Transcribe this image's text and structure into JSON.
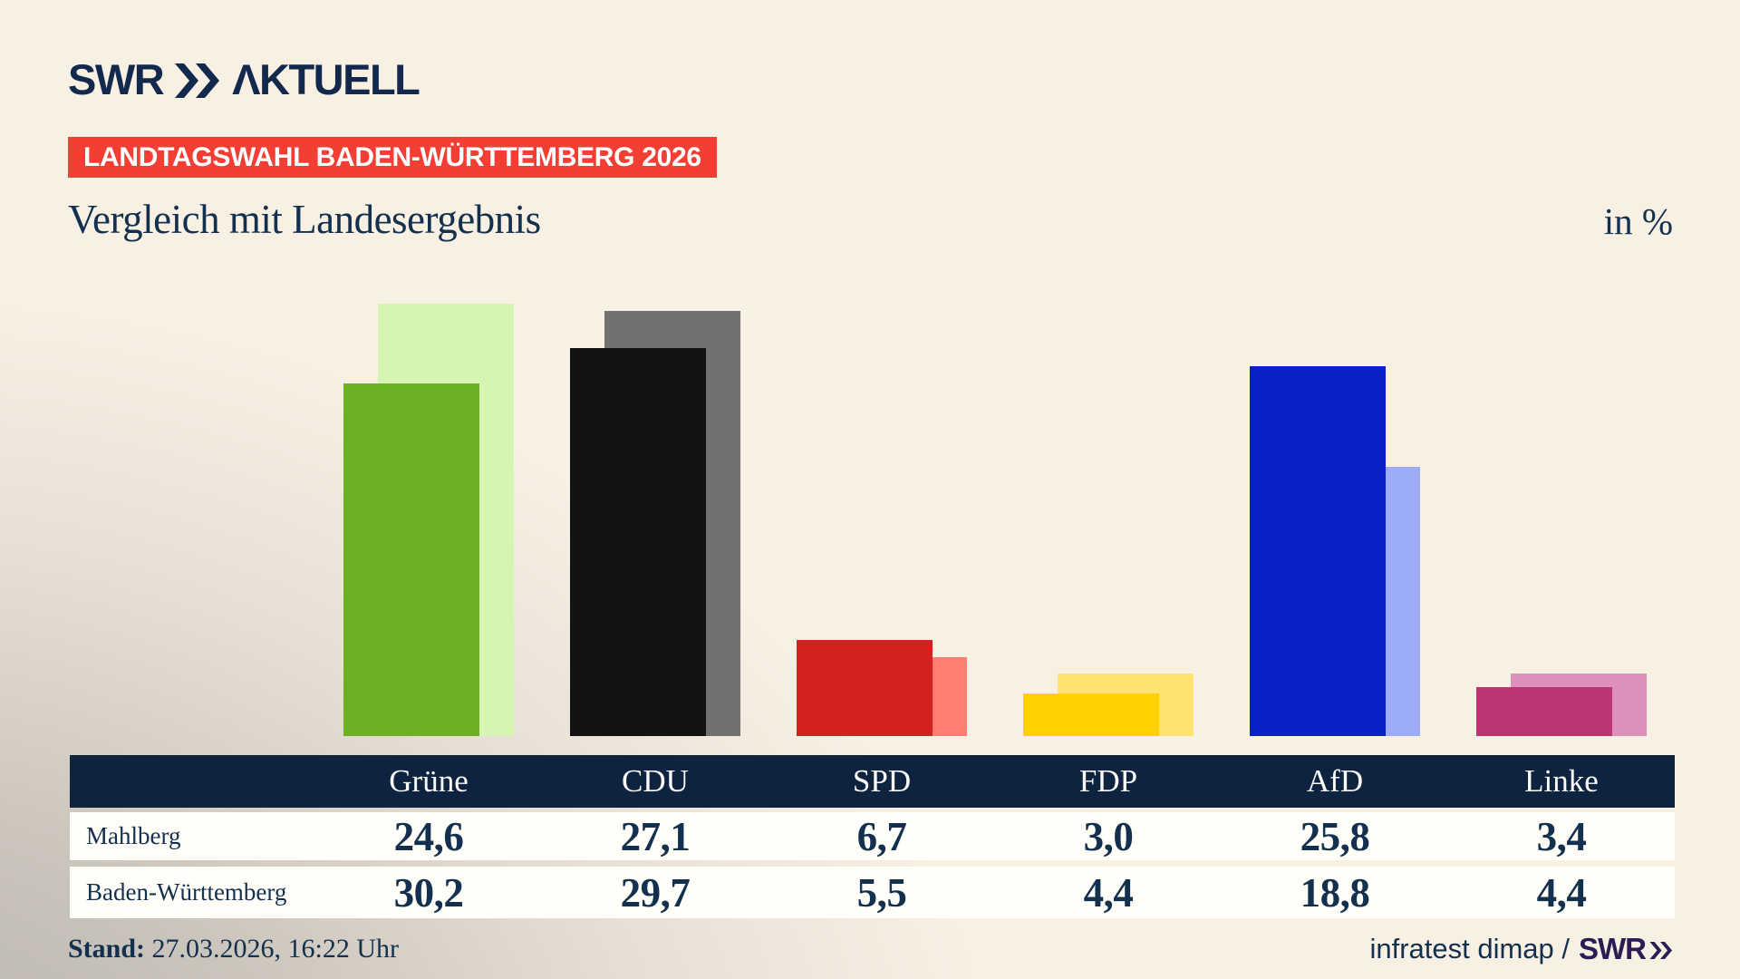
{
  "header": {
    "logo_brand": "SWR",
    "logo_suffix": "ΛKTUELL",
    "badge": "LANDTAGSWAHL BADEN-WÜRTTEMBERG 2026",
    "title": "Vergleich mit Landesergebnis",
    "unit": "in %"
  },
  "chart_data": {
    "type": "bar",
    "categories": [
      "Grüne",
      "CDU",
      "SPD",
      "FDP",
      "AfD",
      "Linke"
    ],
    "series": [
      {
        "name": "Mahlberg",
        "role": "front",
        "values": [
          24.6,
          27.1,
          6.7,
          3.0,
          25.8,
          3.4
        ]
      },
      {
        "name": "Baden-Württemberg",
        "role": "back",
        "values": [
          30.2,
          29.7,
          5.5,
          4.4,
          18.8,
          4.4
        ]
      }
    ],
    "bar_colors_front": [
      "#6CB023",
      "#131313",
      "#D4211E",
      "#FFD100",
      "#0822C8",
      "#BB3473"
    ],
    "bar_colors_back": [
      "#D6F5B2",
      "#737070",
      "#FF7D73",
      "#FFE372",
      "#9DACF8",
      "#DE90BD"
    ],
    "unit": "%",
    "ylim": [
      0,
      34
    ],
    "gridlines": false,
    "axis_labels": false,
    "legend_position": "table-below",
    "title": "Vergleich mit Landesergebnis"
  },
  "table": {
    "columns": [
      "Grüne",
      "CDU",
      "SPD",
      "FDP",
      "AfD",
      "Linke"
    ],
    "rows": [
      {
        "label": "Mahlberg",
        "values": [
          "24,6",
          "27,1",
          "6,7",
          "3,0",
          "25,8",
          "3,4"
        ]
      },
      {
        "label": "Baden-Württemberg",
        "values": [
          "30,2",
          "29,7",
          "5,5",
          "4,4",
          "18,8",
          "4,4"
        ]
      }
    ],
    "header_bg": "#0E233F"
  },
  "footer": {
    "stand_label": "Stand:",
    "stand_value": " 27.03.2026, 16:22 Uhr",
    "source": "infratest dimap /",
    "source_brand": "SWR"
  },
  "colors": {
    "background": "#F8F0E3",
    "text": "#13304F",
    "badge_bg": "#F23E33",
    "badge_text": "#FFFFFF",
    "logo": "#12294D",
    "footer_brand": "#2E1A54"
  }
}
